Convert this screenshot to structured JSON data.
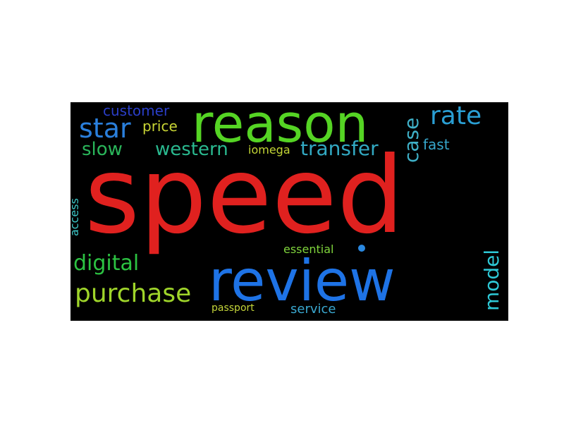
{
  "word_cloud": {
    "background": "#000000",
    "words": [
      {
        "text": "speed",
        "color": "#e0211f"
      },
      {
        "text": "reason",
        "color": "#55d424"
      },
      {
        "text": "review",
        "color": "#1e73e6"
      },
      {
        "text": "rate",
        "color": "#2a9fd4"
      },
      {
        "text": "star",
        "color": "#2a7fdc"
      },
      {
        "text": "customer",
        "color": "#2a3ec8"
      },
      {
        "text": "price",
        "color": "#c9d535"
      },
      {
        "text": "case",
        "color": "#3fb1c8"
      },
      {
        "text": "slow",
        "color": "#2ab55a"
      },
      {
        "text": "western",
        "color": "#2ab98f"
      },
      {
        "text": "iomega",
        "color": "#c3d635"
      },
      {
        "text": "transfer",
        "color": "#32a9c2"
      },
      {
        "text": "fast",
        "color": "#37a7cc"
      },
      {
        "text": "access",
        "color": "#3cc6c6"
      },
      {
        "text": "digital",
        "color": "#2cc242"
      },
      {
        "text": "essential",
        "color": "#7fd43c"
      },
      {
        "text": "purchase",
        "color": "#9fd52a"
      },
      {
        "text": "model",
        "color": "#2ec9d6"
      },
      {
        "text": "passport",
        "color": "#c5d63a"
      },
      {
        "text": "service",
        "color": "#3aa8d0"
      }
    ],
    "dot_color": "#2a88e0"
  }
}
